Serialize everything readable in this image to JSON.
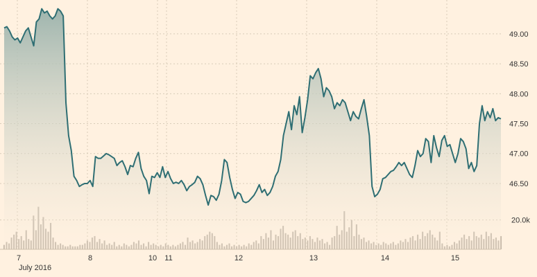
{
  "chart_data": {
    "type": "line",
    "price_series": {
      "color": "#2e6e73",
      "fill_top": "#9fb5ae",
      "fill_bottom": "#fff1e0",
      "values": [
        49.1,
        49.12,
        49.05,
        48.95,
        48.9,
        48.93,
        48.85,
        48.95,
        49.05,
        49.1,
        48.95,
        48.8,
        49.2,
        49.25,
        49.42,
        49.35,
        49.38,
        49.3,
        49.25,
        49.3,
        49.42,
        49.38,
        49.3,
        47.85,
        47.3,
        47.05,
        46.62,
        46.55,
        46.45,
        46.48,
        46.5,
        46.5,
        46.55,
        46.45,
        46.95,
        46.92,
        46.92,
        46.96,
        47.0,
        46.98,
        46.95,
        46.92,
        46.8,
        46.85,
        46.88,
        46.78,
        46.65,
        46.8,
        46.78,
        46.92,
        47.02,
        46.75,
        46.62,
        46.55,
        46.33,
        46.62,
        46.6,
        46.68,
        46.6,
        46.78,
        46.6,
        46.7,
        46.58,
        46.5,
        46.52,
        46.5,
        46.55,
        46.48,
        46.38,
        46.45,
        46.48,
        46.52,
        46.62,
        46.58,
        46.48,
        46.3,
        46.14,
        46.3,
        46.28,
        46.22,
        46.32,
        46.55,
        46.9,
        46.85,
        46.6,
        46.4,
        46.25,
        46.35,
        46.32,
        46.2,
        46.18,
        46.2,
        46.25,
        46.3,
        46.38,
        46.48,
        46.35,
        46.4,
        46.3,
        46.35,
        46.45,
        46.62,
        46.7,
        46.9,
        47.3,
        47.5,
        47.7,
        47.4,
        47.8,
        47.65,
        47.95,
        47.35,
        47.6,
        47.9,
        48.3,
        48.25,
        48.35,
        48.42,
        48.25,
        47.95,
        48.1,
        48.05,
        47.95,
        47.75,
        47.85,
        47.8,
        47.9,
        47.85,
        47.7,
        47.55,
        47.7,
        47.62,
        47.58,
        47.75,
        47.9,
        47.62,
        47.3,
        46.45,
        46.28,
        46.32,
        46.4,
        46.58,
        46.6,
        46.65,
        46.7,
        46.72,
        46.78,
        46.85,
        46.8,
        46.85,
        46.75,
        46.65,
        46.6,
        46.8,
        47.05,
        46.95,
        47.0,
        47.25,
        47.2,
        46.85,
        47.3,
        47.1,
        46.95,
        47.22,
        47.3,
        47.12,
        47.15,
        47.0,
        46.85,
        47.0,
        47.25,
        47.2,
        47.08,
        46.75,
        46.85,
        46.7,
        46.8,
        47.5,
        47.8,
        47.55,
        47.7,
        47.6,
        47.75,
        47.55,
        47.6,
        47.58
      ]
    },
    "volume_series": {
      "color": "#c5b8a8",
      "values_k": [
        3,
        5,
        4,
        8,
        10,
        12,
        7,
        9,
        6,
        13,
        7,
        6,
        23,
        13,
        29,
        17,
        22,
        14,
        12,
        18,
        8,
        5,
        3,
        4,
        3,
        2,
        2,
        3,
        2,
        2,
        2,
        3,
        3,
        4,
        6,
        5,
        8,
        9,
        5,
        7,
        4,
        6,
        3,
        4,
        3,
        5,
        2,
        3,
        2,
        4,
        3,
        2,
        3,
        5,
        4,
        6,
        3,
        4,
        2,
        5,
        3,
        4,
        3,
        2,
        3,
        2,
        4,
        3,
        2,
        3,
        2,
        3,
        4,
        5,
        3,
        8,
        5,
        6,
        4,
        5,
        7,
        6,
        9,
        10,
        12,
        11,
        9,
        5,
        3,
        4,
        2,
        3,
        4,
        2,
        3,
        2,
        3,
        2,
        3,
        2,
        4,
        3,
        5,
        6,
        4,
        9,
        7,
        11,
        8,
        13,
        6,
        10,
        9,
        14,
        16,
        11,
        10,
        8,
        12,
        13,
        9,
        11,
        7,
        8,
        6,
        9,
        7,
        5,
        8,
        6,
        7,
        4,
        5,
        3,
        8,
        9,
        16,
        10,
        13,
        26,
        12,
        15,
        20,
        9,
        17,
        10,
        7,
        8,
        5,
        6,
        4,
        5,
        3,
        4,
        3,
        5,
        4,
        3,
        4,
        5,
        3,
        4,
        6,
        5,
        7,
        5,
        8,
        9,
        6,
        10,
        7,
        12,
        9,
        11,
        13,
        10,
        8,
        6,
        12,
        4,
        2,
        3,
        2,
        3,
        5,
        4,
        6,
        8,
        10,
        7,
        9,
        6,
        12,
        9,
        8,
        10,
        7,
        12,
        9,
        11,
        7,
        8,
        6,
        9
      ]
    },
    "x_tick_labels": [
      "7",
      "8",
      "10",
      "11",
      "12",
      "13",
      "14",
      "15"
    ],
    "x_sub_label": "July 2016",
    "price_tick_labels": [
      "46.50",
      "47.00",
      "47.50",
      "48.00",
      "48.50",
      "49.00"
    ],
    "price_ticks": [
      46.5,
      47.0,
      47.5,
      48.0,
      48.5,
      49.0
    ],
    "price_range": [
      45.4,
      49.52
    ],
    "volume_tick_label": "20.0k",
    "volume_tick": 20,
    "volume_range": [
      0,
      34
    ],
    "grid": true
  }
}
